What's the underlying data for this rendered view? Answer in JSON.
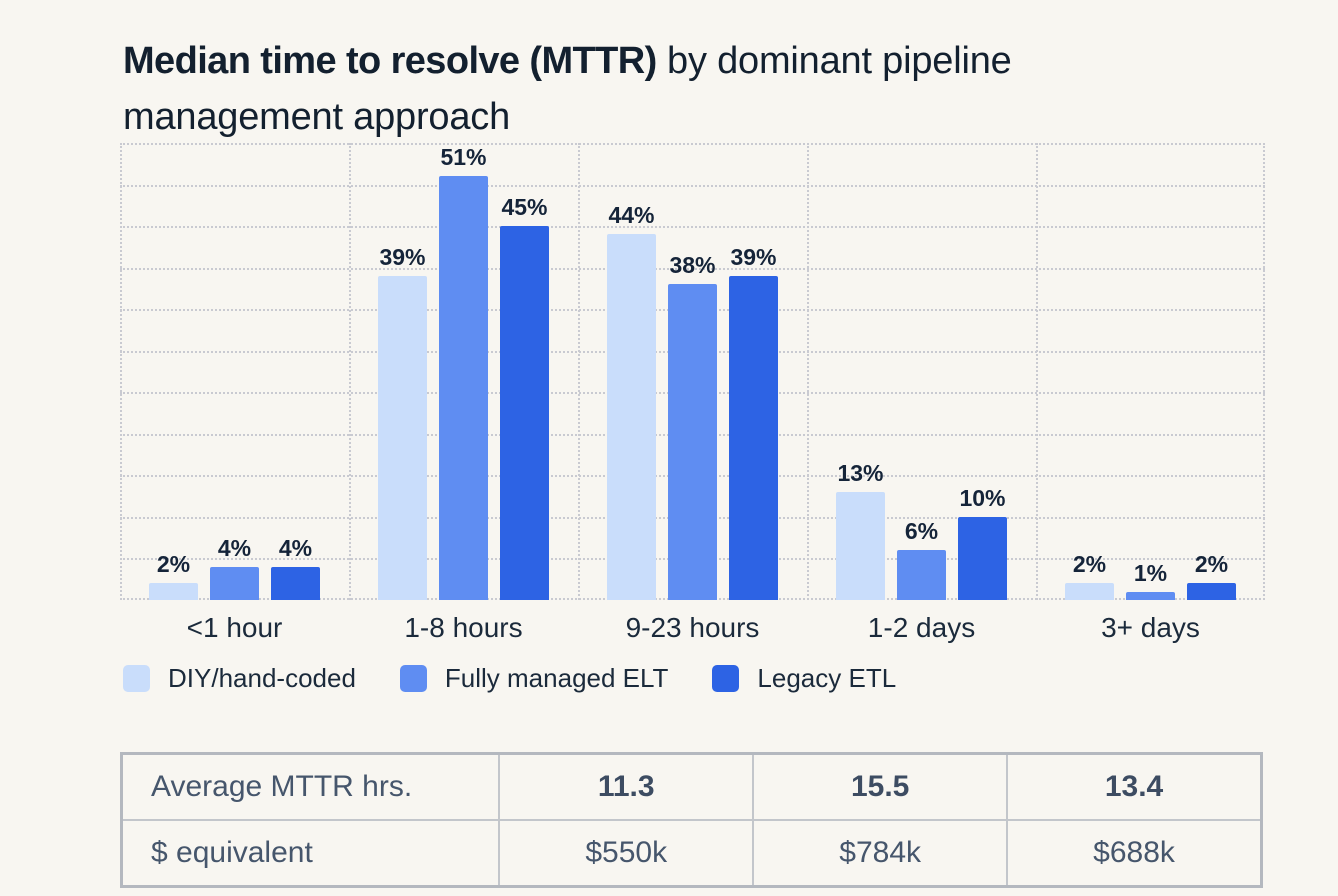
{
  "title": {
    "bold": "Median time to resolve (MTTR)",
    "rest_line1": " by dominant pipeline",
    "line2": "management approach"
  },
  "chart_data": {
    "type": "bar",
    "title": "Median time to resolve (MTTR) by dominant pipeline management approach",
    "categories": [
      "<1 hour",
      "1-8 hours",
      "9-23 hours",
      "1-2 days",
      "3+ days"
    ],
    "series": [
      {
        "name": "DIY/hand-coded",
        "color": "#C9DDFB",
        "values": [
          2,
          39,
          44,
          13,
          2
        ]
      },
      {
        "name": "Fully managed ELT",
        "color": "#5F8DF2",
        "values": [
          4,
          51,
          38,
          6,
          1
        ]
      },
      {
        "name": "Legacy ETL",
        "color": "#2D63E4",
        "values": [
          4,
          45,
          39,
          10,
          2
        ]
      }
    ],
    "value_suffix": "%",
    "xlabel": "",
    "ylabel": "",
    "ylim": [
      0,
      55
    ],
    "grid_step_pct": 5,
    "grid": "dotted",
    "legend_position": "bottom"
  },
  "table": {
    "rows": [
      {
        "label": "Average MTTR hrs.",
        "values": [
          "11.3",
          "15.5",
          "13.4"
        ],
        "bold_values": true
      },
      {
        "label": "$ equivalent",
        "values": [
          "$550k",
          "$784k",
          "$688k"
        ],
        "bold_values": false
      }
    ]
  },
  "colors": {
    "background": "#F8F6F1",
    "title_text": "#13202F",
    "label_text": "#1B2A3B",
    "value_label_text": "#152439",
    "grid": "#C9CAD1",
    "table_text": "#46566C",
    "table_border_outer": "#B4B8BF",
    "table_border_inner": "#C3C6CB"
  }
}
